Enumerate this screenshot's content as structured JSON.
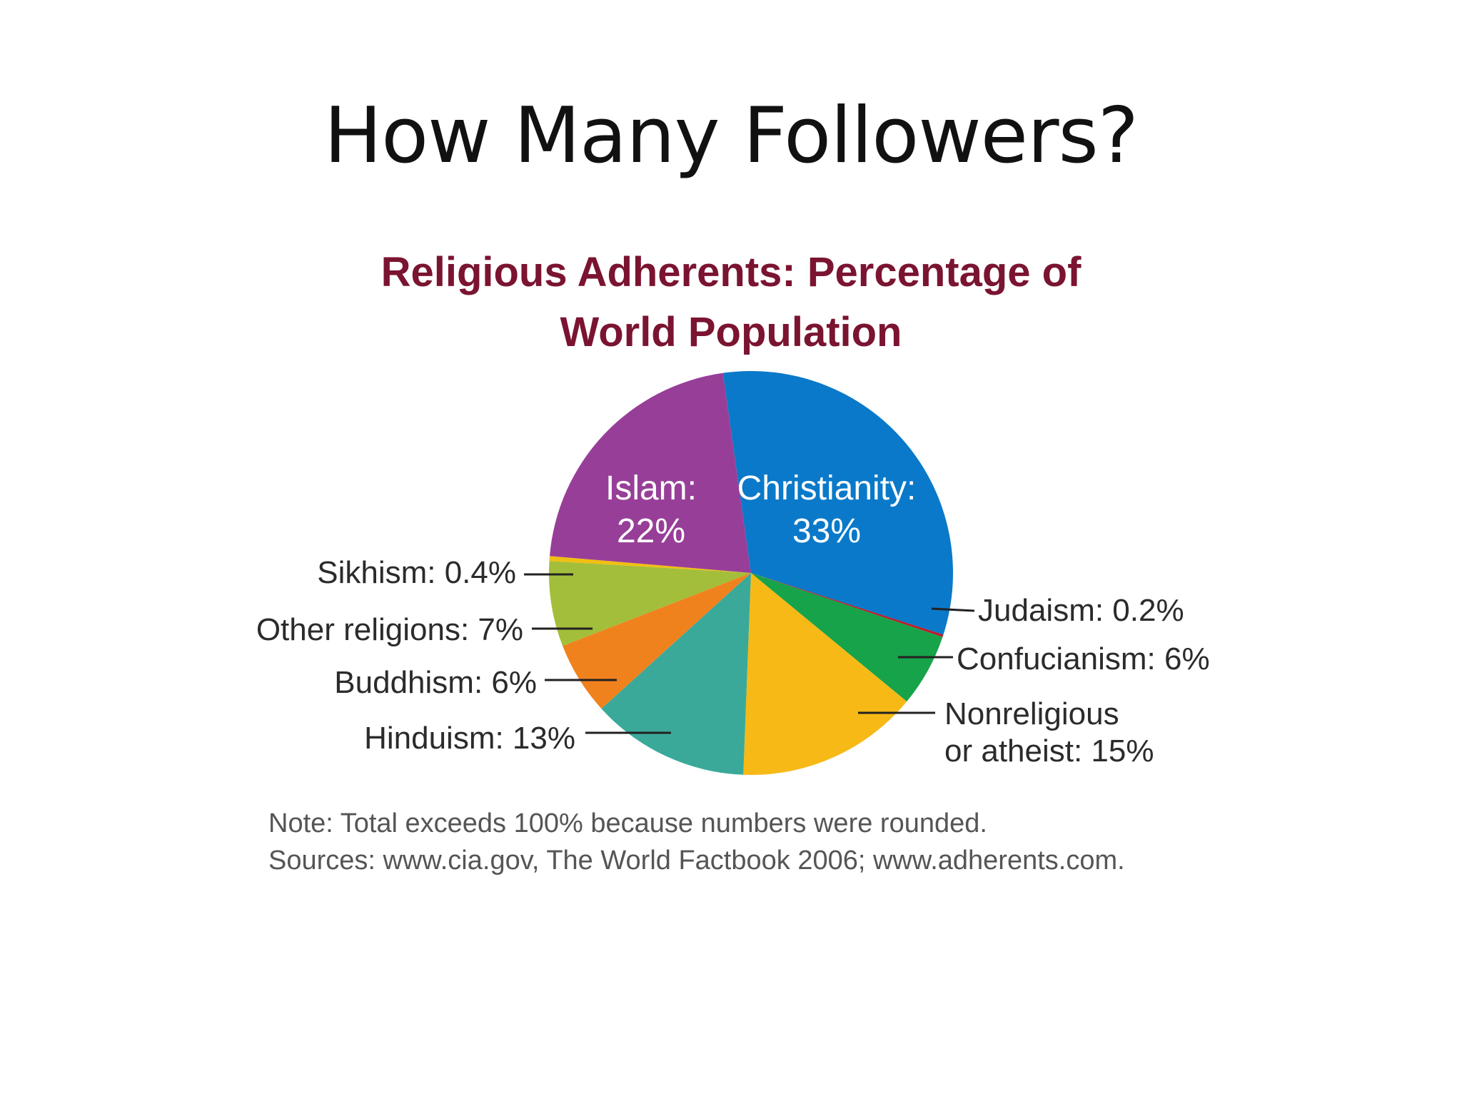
{
  "slide": {
    "title": "How Many Followers?"
  },
  "colors": {
    "title_text": "#7a1430",
    "Christianity": "#0a79c9",
    "Judaism": "#c0182a",
    "Confucianism": "#17a34a",
    "Nonreligious or atheist": "#f7b916",
    "Hinduism": "#3aa99a",
    "Buddhism": "#f0821e",
    "Other religions": "#a3be3a",
    "Sikhism": "#f1bf12",
    "Islam": "#973f98"
  },
  "chart_data": {
    "type": "pie",
    "title_lines": [
      "Religious Adherents: Percentage of",
      "World Population"
    ],
    "unit": "%",
    "slices": [
      {
        "name": "Christianity",
        "label_lines": [
          "Christianity:",
          "33%"
        ],
        "value": 33,
        "label_placement": "inside"
      },
      {
        "name": "Judaism",
        "label_lines": [
          "Judaism: 0.2%"
        ],
        "value": 0.2,
        "label_placement": "callout-right"
      },
      {
        "name": "Confucianism",
        "label_lines": [
          "Confucianism: 6%"
        ],
        "value": 6,
        "label_placement": "callout-right"
      },
      {
        "name": "Nonreligious or atheist",
        "label_lines": [
          "Nonreligious",
          "or atheist: 15%"
        ],
        "value": 15,
        "label_placement": "callout-right"
      },
      {
        "name": "Hinduism",
        "label_lines": [
          "Hinduism: 13%"
        ],
        "value": 13,
        "label_placement": "callout-left"
      },
      {
        "name": "Buddhism",
        "label_lines": [
          "Buddhism: 6%"
        ],
        "value": 6,
        "label_placement": "callout-left"
      },
      {
        "name": "Other religions",
        "label_lines": [
          "Other religions: 7%"
        ],
        "value": 7,
        "label_placement": "callout-left"
      },
      {
        "name": "Sikhism",
        "label_lines": [
          "Sikhism: 0.4%"
        ],
        "value": 0.4,
        "label_placement": "callout-left"
      },
      {
        "name": "Islam",
        "label_lines": [
          "Islam:",
          "22%"
        ],
        "value": 22,
        "label_placement": "inside"
      }
    ],
    "notes": [
      "Note: Total exceeds 100% because numbers were rounded.",
      "Sources: www.cia.gov, The World Factbook 2006; www.adherents.com."
    ]
  }
}
